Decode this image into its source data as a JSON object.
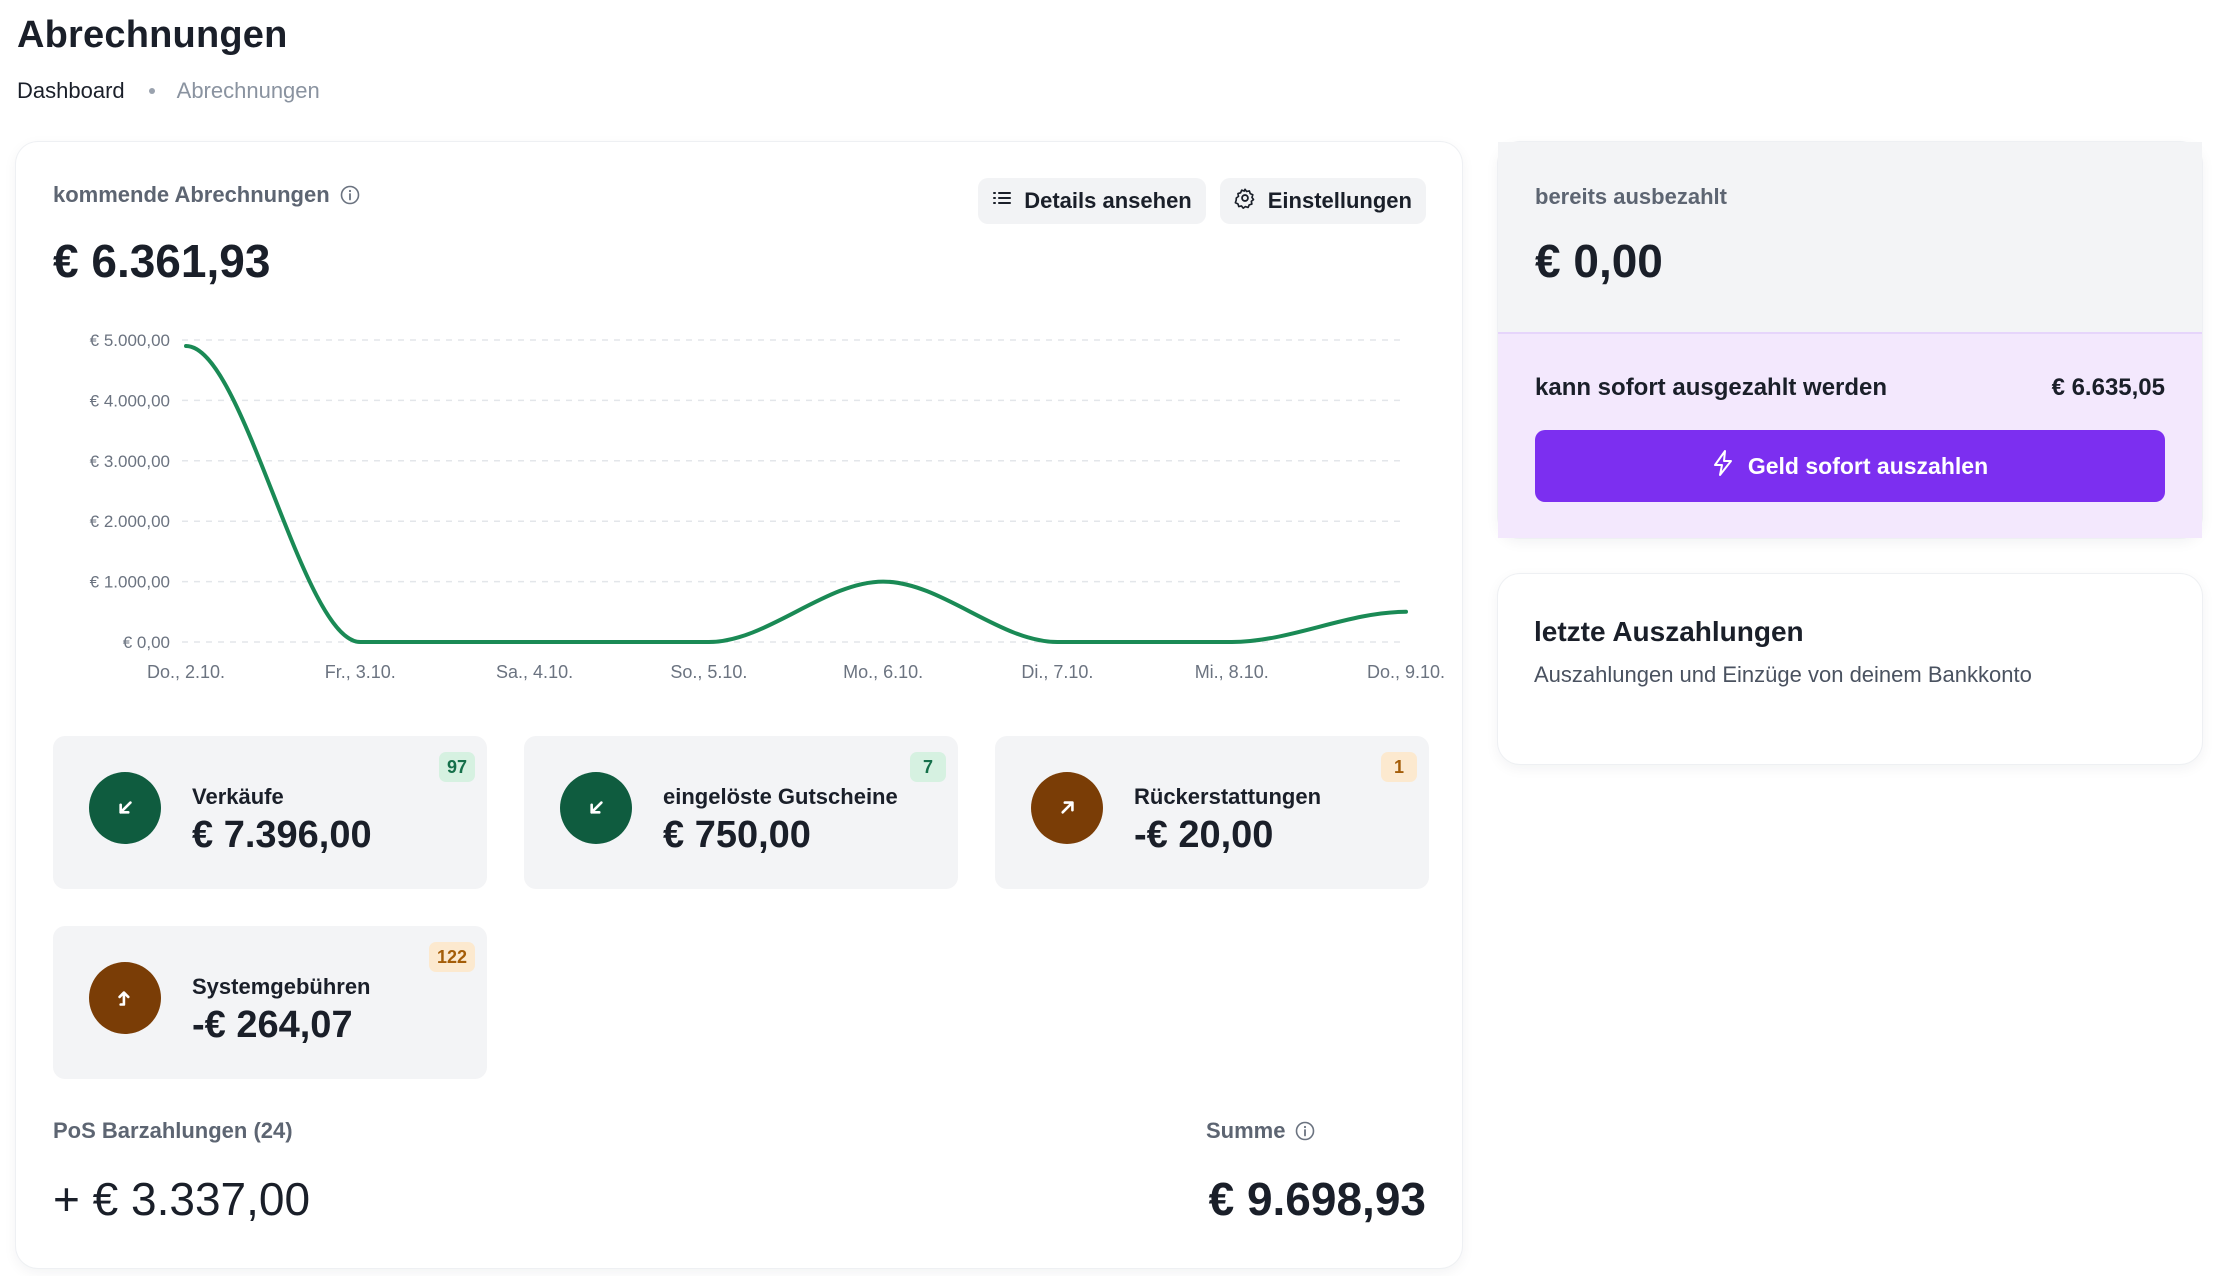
{
  "page": {
    "title": "Abrechnungen",
    "breadcrumb": {
      "home": "Dashboard",
      "current": "Abrechnungen"
    }
  },
  "upcoming": {
    "label": "kommende Abrechnungen",
    "amount": "€ 6.361,93",
    "buttons": {
      "details": "Details ansehen",
      "settings": "Einstellungen"
    }
  },
  "chart_data": {
    "type": "line",
    "x": [
      "Do., 2.10.",
      "Fr., 3.10.",
      "Sa., 4.10.",
      "So., 5.10.",
      "Mo., 6.10.",
      "Di., 7.10.",
      "Mi., 8.10.",
      "Do., 9.10."
    ],
    "series": [
      {
        "values": [
          4900,
          0,
          0,
          0,
          1000,
          0,
          0,
          500
        ]
      }
    ],
    "yticks": [
      "€ 5.000,00",
      "€ 4.000,00",
      "€ 3.000,00",
      "€ 2.000,00",
      "€ 1.000,00",
      "€ 0,00"
    ],
    "ylim": [
      0,
      5000
    ],
    "grid": true,
    "color": "#1a8a55"
  },
  "stats": [
    {
      "label": "Verkäufe",
      "value": "€ 7.396,00",
      "badge": "97",
      "badge_style": "green",
      "icon": "arrow-down-left-icon",
      "tone": "green"
    },
    {
      "label": "eingelöste Gutscheine",
      "value": "€ 750,00",
      "badge": "7",
      "badge_style": "green",
      "icon": "arrow-down-left-icon",
      "tone": "green"
    },
    {
      "label": "Rückerstattungen",
      "value": "-€ 20,00",
      "badge": "1",
      "badge_style": "amber",
      "icon": "arrow-up-right-icon",
      "tone": "brown"
    },
    {
      "label": "Systemgebühren",
      "value": "-€ 264,07",
      "badge": "122",
      "badge_style": "amber",
      "icon": "corner-up-icon",
      "tone": "brown"
    }
  ],
  "pos": {
    "label": "PoS Barzahlungen (24)",
    "value": "+ € 3.337,00"
  },
  "sum": {
    "label": "Summe",
    "value": "€ 9.698,93"
  },
  "paid": {
    "label": "bereits ausbezahlt",
    "value": "€ 0,00",
    "instant_label": "kann sofort ausgezahlt werden",
    "instant_value": "€ 6.635,05",
    "payout_button": "Geld sofort auszahlen"
  },
  "last_payouts": {
    "title": "letzte Auszahlungen",
    "subtitle": "Auszahlungen und Einzüge von deinem Bankkonto"
  },
  "colors": {
    "accent": "#7c2ff0",
    "green": "#0f5c3f",
    "brown": "#7a3d06"
  }
}
